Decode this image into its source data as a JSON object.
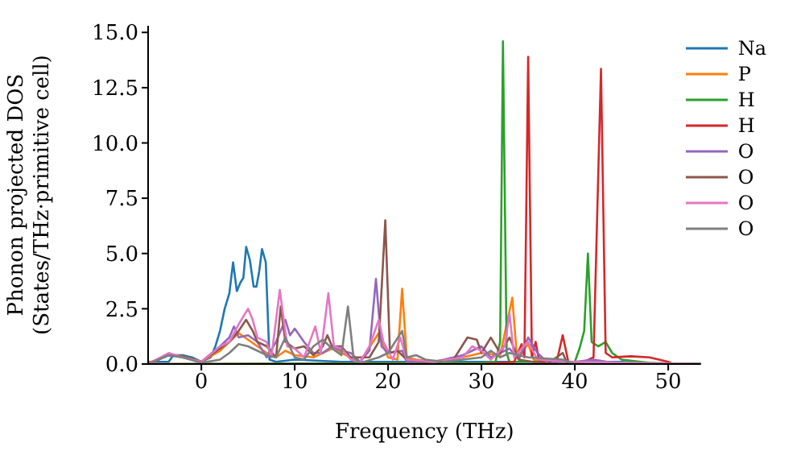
{
  "chart_data": {
    "type": "line",
    "xlabel": "Frequency (THz)",
    "ylabel": "Phonon projected DOS\n(States/THz·primitive cell)",
    "xlim": [
      -5.7,
      53.5
    ],
    "ylim": [
      0,
      15.3
    ],
    "xticks": [
      0,
      10,
      20,
      30,
      40,
      50
    ],
    "yticks": [
      {
        "value": 0,
        "label": "0.0"
      },
      {
        "value": 2.5,
        "label": "2.5"
      },
      {
        "value": 5,
        "label": "5.0"
      },
      {
        "value": 7.5,
        "label": "7.5"
      },
      {
        "value": 10,
        "label": "10.0"
      },
      {
        "value": 12.5,
        "label": "12.5"
      },
      {
        "value": 15,
        "label": "15.0"
      }
    ],
    "grid": false,
    "legend": "top right",
    "marker": "none",
    "line_style": "solid",
    "series": [
      {
        "name": "Na",
        "color": "#1f77b4",
        "x": [
          -5.7,
          -3.5,
          -3,
          -2,
          -1,
          0,
          1,
          1.5,
          2,
          2.5,
          3,
          3.4,
          3.8,
          4.2,
          4.5,
          4.8,
          5.2,
          5.6,
          5.9,
          6.2,
          6.5,
          6.9,
          7.3,
          8,
          10,
          15,
          20,
          25,
          30,
          35,
          40,
          45,
          50,
          53.5
        ],
        "values": [
          0.1,
          0.1,
          0.4,
          0.4,
          0.3,
          0.1,
          0.3,
          0.8,
          1.5,
          2.5,
          3.2,
          4.6,
          3.3,
          3.7,
          3.9,
          5.3,
          4.7,
          3.5,
          3.5,
          4.2,
          5.2,
          4.6,
          0.2,
          0.1,
          0.2,
          0.1,
          0.1,
          0.1,
          0.1,
          0.1,
          0.1,
          0.1,
          0,
          0
        ]
      },
      {
        "name": "P",
        "color": "#ff7f0e",
        "x": [
          -5.7,
          -3.5,
          -2,
          0,
          2,
          3,
          4,
          5,
          6,
          7,
          8,
          9,
          10,
          12,
          14,
          16,
          17,
          19,
          20,
          21,
          21.5,
          22,
          23,
          25,
          28,
          30,
          32,
          33.3,
          33.8,
          35,
          35.6,
          37,
          40
        ],
        "values": [
          0.05,
          0.4,
          0.35,
          0.1,
          0.6,
          1.0,
          1.4,
          1.1,
          0.8,
          0.5,
          0.3,
          0.6,
          0.4,
          0.3,
          0.7,
          0.3,
          0.1,
          1.4,
          0.3,
          0.2,
          3.4,
          0.3,
          0.2,
          0.1,
          0.3,
          0.5,
          0.4,
          3.0,
          0.3,
          0.9,
          0.2,
          0,
          0.1
        ]
      },
      {
        "name": "H",
        "color": "#2ca02c",
        "x": [
          -5.7,
          30,
          31.5,
          32,
          32.3,
          32.7,
          33,
          40,
          40.5,
          41,
          41.4,
          41.8,
          42.5,
          43.3,
          44,
          45,
          48,
          53.5
        ],
        "values": [
          0,
          0.05,
          0.1,
          1,
          14.6,
          0.5,
          0.1,
          0.1,
          0.7,
          1.5,
          5.0,
          1.0,
          0.8,
          1.0,
          0.5,
          0.2,
          0.05,
          0
        ]
      },
      {
        "name": "H",
        "color": "#d62728",
        "x": [
          -5.7,
          30,
          33.5,
          34.3,
          34.6,
          35,
          35.4,
          35.8,
          36.2,
          38,
          38.7,
          39.3,
          41,
          42,
          42.8,
          43.3,
          44,
          46,
          48,
          50,
          50.5,
          53.5
        ],
        "values": [
          0,
          0,
          0.1,
          0.9,
          0.3,
          13.9,
          0.3,
          1.0,
          0.1,
          0,
          1.3,
          0.1,
          0.1,
          0.3,
          13.35,
          0.5,
          0.3,
          0.35,
          0.3,
          0.1,
          0,
          0
        ]
      },
      {
        "name": "O",
        "color": "#9467bd",
        "x": [
          -5.7,
          -3.5,
          -2,
          0,
          2,
          3,
          3.5,
          4,
          5,
          6,
          7,
          8,
          9,
          9.5,
          10,
          11,
          12,
          13,
          14,
          15,
          16,
          17,
          18,
          18.7,
          19.3,
          20,
          21.5,
          22,
          25,
          28,
          30,
          31,
          33,
          34,
          35,
          36,
          37,
          40,
          42,
          45,
          53.5
        ],
        "values": [
          0,
          0.4,
          0.3,
          0.1,
          0.8,
          1.2,
          1.7,
          1.2,
          1.3,
          1.0,
          0.3,
          1.0,
          2.0,
          1.3,
          1.6,
          1.0,
          0.5,
          0.5,
          0.8,
          0.6,
          0.5,
          0.1,
          0.6,
          3.85,
          0.8,
          0.5,
          0.6,
          0.1,
          0.1,
          0.4,
          0.8,
          0.3,
          0.7,
          0.2,
          1.2,
          0.5,
          0.1,
          0.1,
          0.2,
          0,
          0
        ]
      },
      {
        "name": "O",
        "color": "#8c564b",
        "x": [
          -5.7,
          -3.5,
          -2,
          0,
          2,
          3,
          4,
          4.8,
          5.5,
          6,
          7,
          8,
          8.5,
          9,
          10,
          11,
          12,
          13,
          13.5,
          14,
          15,
          16,
          18,
          19,
          19.7,
          20.2,
          21,
          22,
          24,
          27,
          28.5,
          29.5,
          30,
          31,
          32,
          33,
          34,
          37,
          38.7,
          39.2,
          53.5
        ],
        "values": [
          0,
          0.4,
          0.35,
          0.1,
          0.7,
          1.0,
          1.5,
          2.0,
          1.5,
          1.0,
          0.8,
          0.3,
          2.6,
          1.0,
          0.7,
          0.8,
          0.4,
          0.8,
          1.3,
          0.8,
          0.8,
          0.3,
          0.3,
          1.0,
          6.5,
          0.5,
          0.6,
          0.2,
          0.1,
          0.2,
          1.2,
          1.1,
          0.5,
          1.2,
          0.5,
          1.2,
          0.2,
          0,
          0.5,
          0,
          0
        ]
      },
      {
        "name": "O",
        "color": "#e377c2",
        "x": [
          -5.7,
          -3.5,
          -2,
          0,
          2,
          3,
          4,
          5,
          5.5,
          6,
          7,
          7.5,
          8.4,
          9.2,
          10,
          11,
          12.2,
          12.8,
          13.6,
          14.2,
          15,
          16,
          17,
          18,
          19,
          19.5,
          20.5,
          21.3,
          22,
          25,
          28,
          29,
          30,
          31,
          32.5,
          33,
          33.5,
          34.5,
          35,
          36,
          40,
          53.5
        ],
        "values": [
          0,
          0.5,
          0.3,
          0.1,
          0.8,
          1.0,
          1.8,
          2.5,
          2.0,
          1.2,
          1.0,
          0.3,
          3.35,
          0.8,
          0.7,
          0.3,
          1.7,
          0.5,
          3.2,
          0.8,
          0.7,
          0.2,
          0.1,
          0.8,
          2.0,
          1.0,
          0.2,
          1.2,
          0.2,
          0.1,
          0.3,
          0.8,
          0.6,
          0.2,
          0.8,
          2.3,
          0.3,
          0.8,
          1.0,
          0.2,
          0.1,
          0
        ]
      },
      {
        "name": "O",
        "color": "#7f7f7f",
        "x": [
          -5.7,
          -3.5,
          -2,
          0,
          2,
          3,
          4,
          5,
          6,
          7,
          8,
          9,
          10,
          11,
          12,
          13,
          14,
          15,
          15.7,
          16.3,
          17,
          19,
          20,
          21.5,
          22,
          23,
          24,
          26,
          28,
          30,
          31,
          32,
          33,
          35,
          38.7,
          40,
          53.5
        ],
        "values": [
          0,
          0.4,
          0.3,
          0.05,
          0.2,
          0.5,
          0.9,
          0.8,
          0.6,
          0.4,
          0.3,
          1.2,
          0.3,
          0.2,
          0.8,
          1.1,
          0.7,
          0.4,
          2.6,
          0.3,
          0.05,
          0.3,
          0.5,
          1.5,
          0.3,
          0.4,
          0.2,
          0.1,
          0.2,
          0.3,
          0.6,
          0.3,
          0.5,
          0.3,
          0.2,
          0,
          0
        ]
      }
    ]
  }
}
